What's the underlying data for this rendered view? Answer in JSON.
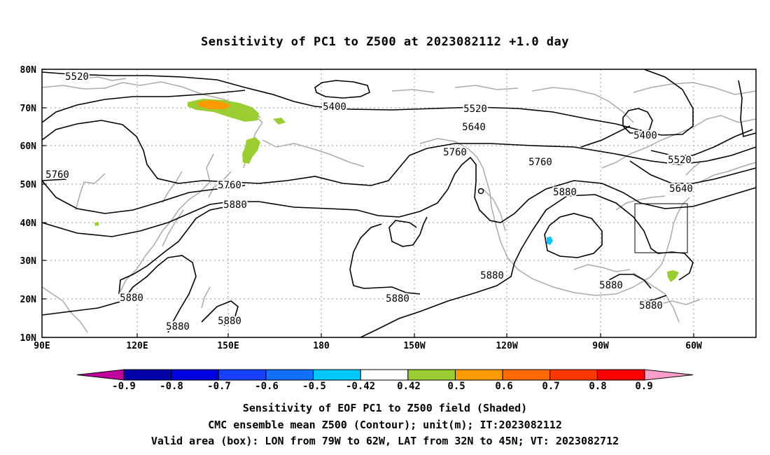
{
  "title": "Sensitivity of PC1 to Z500 at 2023082112 +1.0 day",
  "map": {
    "lat_axis_labels": [
      "80N",
      "70N",
      "60N",
      "50N",
      "40N",
      "30N",
      "20N",
      "10N"
    ],
    "lon_axis_labels": [
      "90E",
      "120E",
      "150E",
      "180",
      "150W",
      "120W",
      "90W",
      "60W"
    ],
    "contour_labels": [
      {
        "text": "5520"
      },
      {
        "text": "5400"
      },
      {
        "text": "5520"
      },
      {
        "text": "5640"
      },
      {
        "text": "5760"
      },
      {
        "text": "5760"
      },
      {
        "text": "5880"
      },
      {
        "text": "5760"
      },
      {
        "text": "5760"
      },
      {
        "text": "5880"
      },
      {
        "text": "5400"
      },
      {
        "text": "5520"
      },
      {
        "text": "5640"
      },
      {
        "text": "5880"
      },
      {
        "text": "5880"
      },
      {
        "text": "5880"
      },
      {
        "text": "5880"
      },
      {
        "text": "5880"
      },
      {
        "text": "5880"
      },
      {
        "text": "5880"
      }
    ],
    "contour_levels": [
      "5400",
      "5520",
      "5640",
      "5760",
      "5880"
    ],
    "valid_area_box": {
      "lon_from": "79W",
      "lon_to": "62W",
      "lat_from": "32N",
      "lat_to": "45N"
    }
  },
  "colorbar": {
    "labels": [
      "-0.9",
      "-0.8",
      "-0.7",
      "-0.6",
      "-0.5",
      "-0.42",
      "0.42",
      "0.5",
      "0.6",
      "0.7",
      "0.8",
      "0.9"
    ],
    "colors": {
      "low_arrow": "#c0009c",
      "bins": [
        "#0000a8",
        "#0000e0",
        "#1840ff",
        "#1070ff",
        "#00c8ff",
        "#ffffff",
        "#9acd32",
        "#ff9a00",
        "#ff6a00",
        "#ff3800",
        "#ff0000"
      ],
      "high_arrow": "#ff9ec8"
    }
  },
  "captions": [
    "Sensitivity of EOF PC1 to Z500 field (Shaded)",
    "CMC ensemble mean Z500 (Contour); unit(m); IT:2023082112",
    "Valid area (box): LON from 79W to 62W, LAT from 32N to 45N; VT: 2023082712"
  ],
  "colors": {
    "coastline": "#aaaaaa",
    "contour": "#000000",
    "grid": "#999999",
    "shade_green": "#9acd32",
    "shade_orange": "#ff9a00",
    "shade_cyan": "#00c8ff"
  }
}
